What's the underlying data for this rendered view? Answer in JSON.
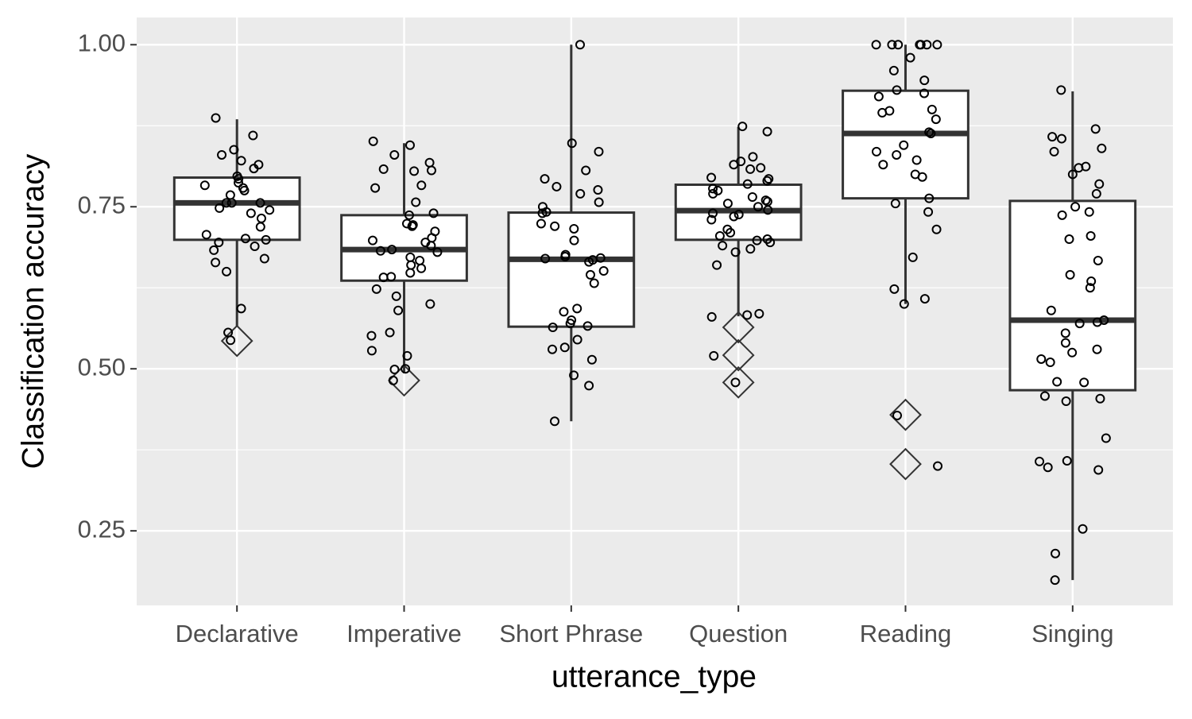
{
  "chart_data": {
    "type": "box",
    "x_label": "utterance_type",
    "y_label": "Classification accuracy",
    "categories": [
      "Declarative",
      "Imperative",
      "Short Phrase",
      "Question",
      "Reading",
      "Singing"
    ],
    "ylim": [
      0.135,
      1.042
    ],
    "yticks": [
      {
        "value": 0.25,
        "label": "0.25"
      },
      {
        "value": 0.5,
        "label": "0.50"
      },
      {
        "value": 0.75,
        "label": "0.75"
      },
      {
        "value": 1,
        "label": "1.00"
      }
    ],
    "grid": true,
    "panel_color": "#ebebeb",
    "box_fill": "#ffffff",
    "box_stroke": "#333333",
    "point_color": "#000000",
    "boxes": [
      {
        "q1": 0.699,
        "median": 0.756,
        "q3": 0.795,
        "whisker_low": 0.566,
        "whisker_high": 0.885,
        "outliers": [
          0.543
        ],
        "points": [
          0.887,
          0.86,
          0.821,
          0.838,
          0.83,
          0.815,
          0.809,
          0.797,
          0.793,
          0.787,
          0.783,
          0.779,
          0.775,
          0.768,
          0.756,
          0.756,
          0.756,
          0.748,
          0.745,
          0.74,
          0.732,
          0.719,
          0.707,
          0.701,
          0.699,
          0.695,
          0.689,
          0.683,
          0.67,
          0.664,
          0.65,
          0.593,
          0.556,
          0.544
        ]
      },
      {
        "q1": 0.636,
        "median": 0.684,
        "q3": 0.737,
        "whisker_low": 0.493,
        "whisker_high": 0.848,
        "outliers": [
          0.482
        ],
        "points": [
          0.845,
          0.851,
          0.83,
          0.818,
          0.808,
          0.806,
          0.805,
          0.783,
          0.779,
          0.757,
          0.74,
          0.737,
          0.724,
          0.722,
          0.72,
          0.712,
          0.702,
          0.698,
          0.695,
          0.69,
          0.684,
          0.682,
          0.68,
          0.672,
          0.667,
          0.66,
          0.655,
          0.648,
          0.642,
          0.641,
          0.623,
          0.612,
          0.6,
          0.59,
          0.556,
          0.551,
          0.528,
          0.52,
          0.5,
          0.499,
          0.482
        ]
      },
      {
        "q1": 0.565,
        "median": 0.669,
        "q3": 0.741,
        "whisker_low": 0.419,
        "whisker_high": 1,
        "outliers": [],
        "points": [
          1,
          0.848,
          0.835,
          0.806,
          0.793,
          0.781,
          0.776,
          0.77,
          0.757,
          0.75,
          0.742,
          0.74,
          0.724,
          0.72,
          0.716,
          0.698,
          0.676,
          0.673,
          0.671,
          0.67,
          0.668,
          0.665,
          0.651,
          0.645,
          0.632,
          0.593,
          0.588,
          0.575,
          0.57,
          0.566,
          0.564,
          0.545,
          0.533,
          0.53,
          0.514,
          0.49,
          0.474,
          0.419
        ]
      },
      {
        "q1": 0.699,
        "median": 0.744,
        "q3": 0.784,
        "whisker_low": 0.581,
        "whisker_high": 0.873,
        "outliers": [
          0.564,
          0.521,
          0.479
        ],
        "points": [
          0.874,
          0.866,
          0.827,
          0.82,
          0.815,
          0.81,
          0.808,
          0.795,
          0.793,
          0.79,
          0.785,
          0.778,
          0.775,
          0.77,
          0.765,
          0.76,
          0.758,
          0.755,
          0.75,
          0.745,
          0.74,
          0.738,
          0.735,
          0.73,
          0.715,
          0.71,
          0.705,
          0.7,
          0.698,
          0.695,
          0.69,
          0.685,
          0.68,
          0.66,
          0.585,
          0.583,
          0.58,
          0.52,
          0.479
        ]
      },
      {
        "q1": 0.763,
        "median": 0.863,
        "q3": 0.929,
        "whisker_low": 0.6,
        "whisker_high": 1,
        "outliers": [
          0.429,
          0.353
        ],
        "points": [
          1,
          1,
          1,
          1,
          1,
          1,
          1,
          0.98,
          0.96,
          0.945,
          0.93,
          0.925,
          0.92,
          0.9,
          0.898,
          0.895,
          0.885,
          0.865,
          0.863,
          0.845,
          0.835,
          0.83,
          0.822,
          0.815,
          0.8,
          0.796,
          0.763,
          0.755,
          0.742,
          0.715,
          0.672,
          0.623,
          0.608,
          0.6,
          0.428,
          0.35
        ]
      },
      {
        "q1": 0.467,
        "median": 0.575,
        "q3": 0.759,
        "whisker_low": 0.174,
        "whisker_high": 0.928,
        "outliers": [],
        "points": [
          0.93,
          0.87,
          0.858,
          0.855,
          0.84,
          0.835,
          0.812,
          0.81,
          0.8,
          0.785,
          0.77,
          0.75,
          0.742,
          0.737,
          0.705,
          0.7,
          0.667,
          0.645,
          0.635,
          0.625,
          0.59,
          0.575,
          0.572,
          0.57,
          0.555,
          0.54,
          0.53,
          0.525,
          0.515,
          0.51,
          0.48,
          0.479,
          0.458,
          0.454,
          0.45,
          0.393,
          0.358,
          0.357,
          0.348,
          0.344,
          0.253,
          0.215,
          0.174
        ]
      }
    ]
  }
}
